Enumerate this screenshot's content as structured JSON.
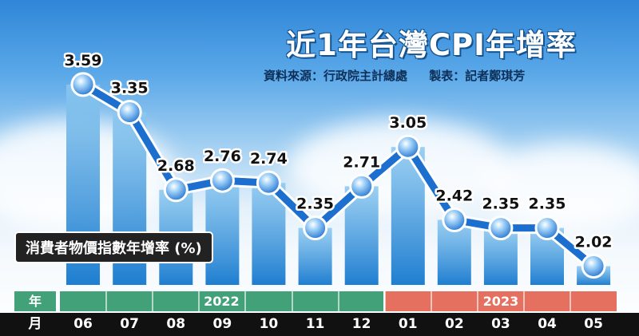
{
  "title": "近1年台灣CPI年增率",
  "credits": {
    "source": "資料來源：行政院主計總處",
    "author": "製表：記者鄭琪芳"
  },
  "series_label": "消費者物價指數年增率 (%)",
  "axis": {
    "year_header": "年",
    "month_header": "月",
    "year_2022": "2022",
    "year_2023": "2023"
  },
  "colors": {
    "year_2022_band": "#43a17a",
    "year_2023_band": "#e5705f",
    "bar_top": "#8cc8f0",
    "bar_bottom": "#1f7ed0",
    "line": "#1d6fcf",
    "marker": "#3b8fe0"
  },
  "chart_data": {
    "type": "bar",
    "title": "近1年台灣CPI年增率",
    "ylabel": "消費者物價指數年增率 (%)",
    "years": [
      "2022",
      "2022",
      "2022",
      "2022",
      "2022",
      "2022",
      "2022",
      "2023",
      "2023",
      "2023",
      "2023",
      "2023"
    ],
    "categories": [
      "06",
      "07",
      "08",
      "09",
      "10",
      "11",
      "12",
      "01",
      "02",
      "03",
      "04",
      "05"
    ],
    "values": [
      3.59,
      3.35,
      2.68,
      2.76,
      2.74,
      2.35,
      2.71,
      3.05,
      2.42,
      2.35,
      2.35,
      2.02
    ],
    "overlay": "line",
    "grid": false
  }
}
